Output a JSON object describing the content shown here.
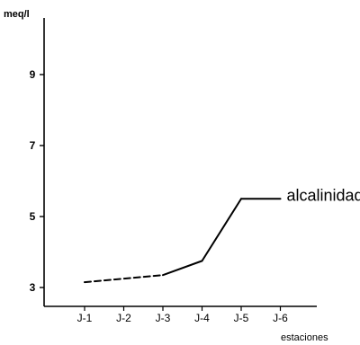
{
  "chart_data": {
    "type": "line",
    "title": "",
    "xlabel": "estaciones",
    "ylabel": "meq/l",
    "categories": [
      "J-1",
      "J-2",
      "J-3",
      "J-4",
      "J-5",
      "J-6"
    ],
    "ylim": [
      2.6,
      11
    ],
    "yticks": [
      3,
      5,
      7,
      9
    ],
    "grid": false,
    "series": [
      {
        "name": "alcalinidad",
        "x": [
          1,
          3,
          4,
          5,
          6
        ],
        "values": [
          3.15,
          3.35,
          3.75,
          5.5,
          5.5
        ],
        "dashed_segments": [
          0
        ]
      }
    ]
  },
  "colors": {
    "line": "#000000",
    "background": "#ffffff"
  }
}
